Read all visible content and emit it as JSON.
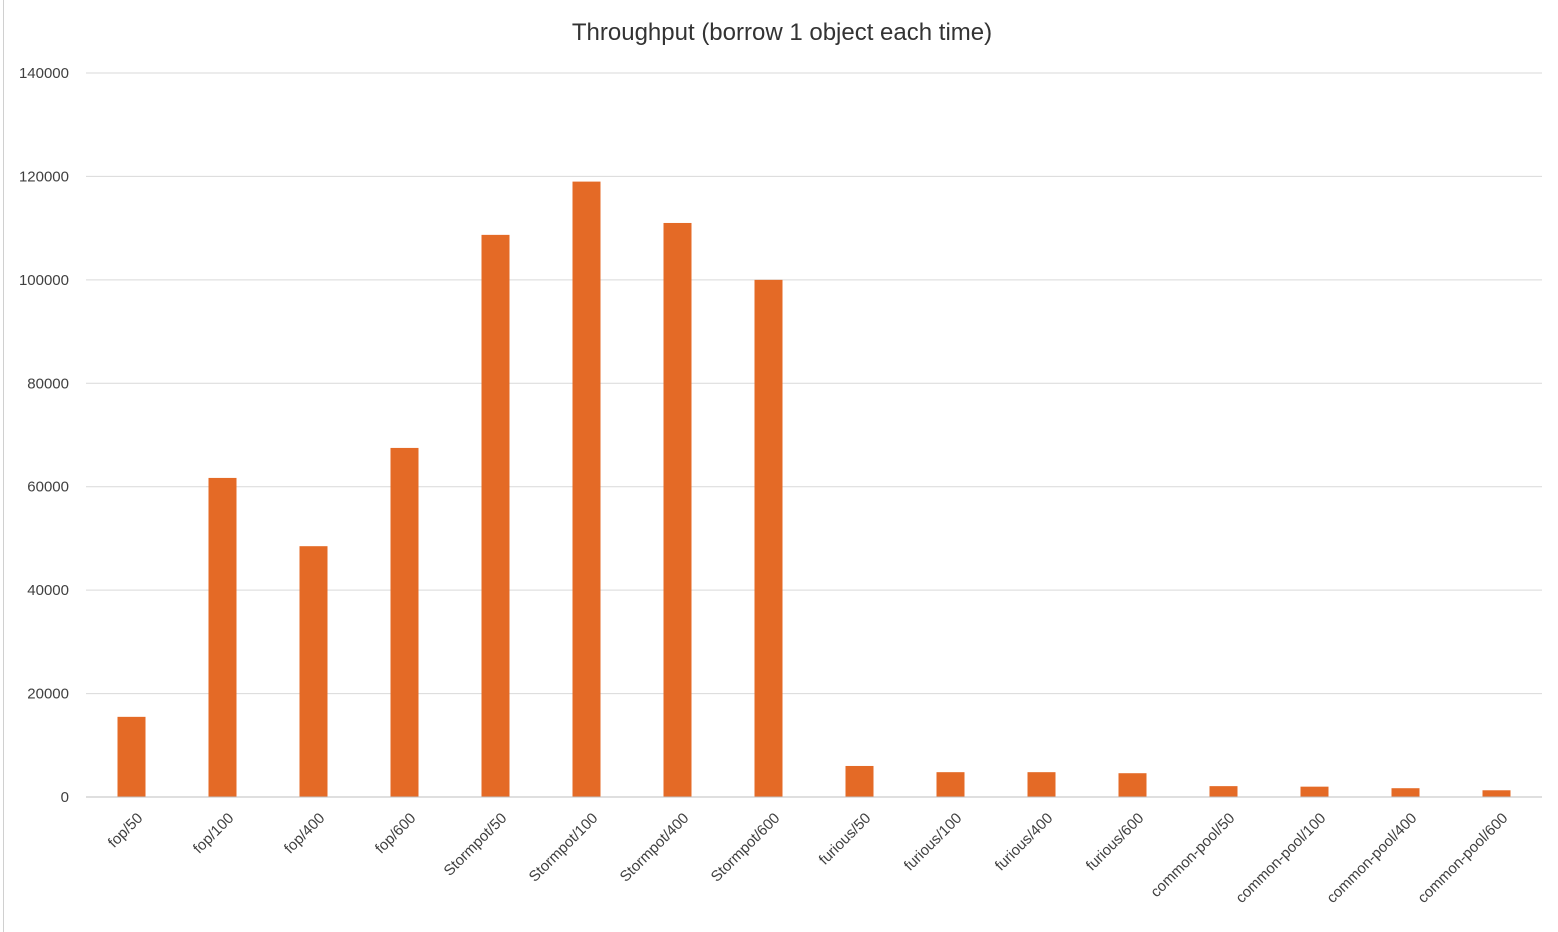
{
  "chart_data": {
    "type": "bar",
    "title": "Throughput (borrow 1 object each time)",
    "xlabel": "",
    "ylabel": "",
    "categories": [
      "fop/50",
      "fop/100",
      "fop/400",
      "fop/600",
      "Stormpot/50",
      "Stormpot/100",
      "Stormpot/400",
      "Stormpot/600",
      "furious/50",
      "furious/100",
      "furious/400",
      "furious/600",
      "common-pool/50",
      "common-pool/100",
      "common-pool/400",
      "common-pool/600"
    ],
    "values": [
      15500,
      61700,
      48500,
      67500,
      108700,
      119000,
      111000,
      100000,
      6000,
      4800,
      4800,
      4600,
      2100,
      2000,
      1700,
      1300
    ],
    "ylim": [
      0,
      140000
    ],
    "yticks": [
      0,
      20000,
      40000,
      60000,
      80000,
      100000,
      120000,
      140000
    ],
    "grid": true,
    "legend": "none",
    "colors": {
      "bar": "#E46A26",
      "grid": "#d9d9d9",
      "text": "#404040",
      "title": "#333333"
    }
  }
}
